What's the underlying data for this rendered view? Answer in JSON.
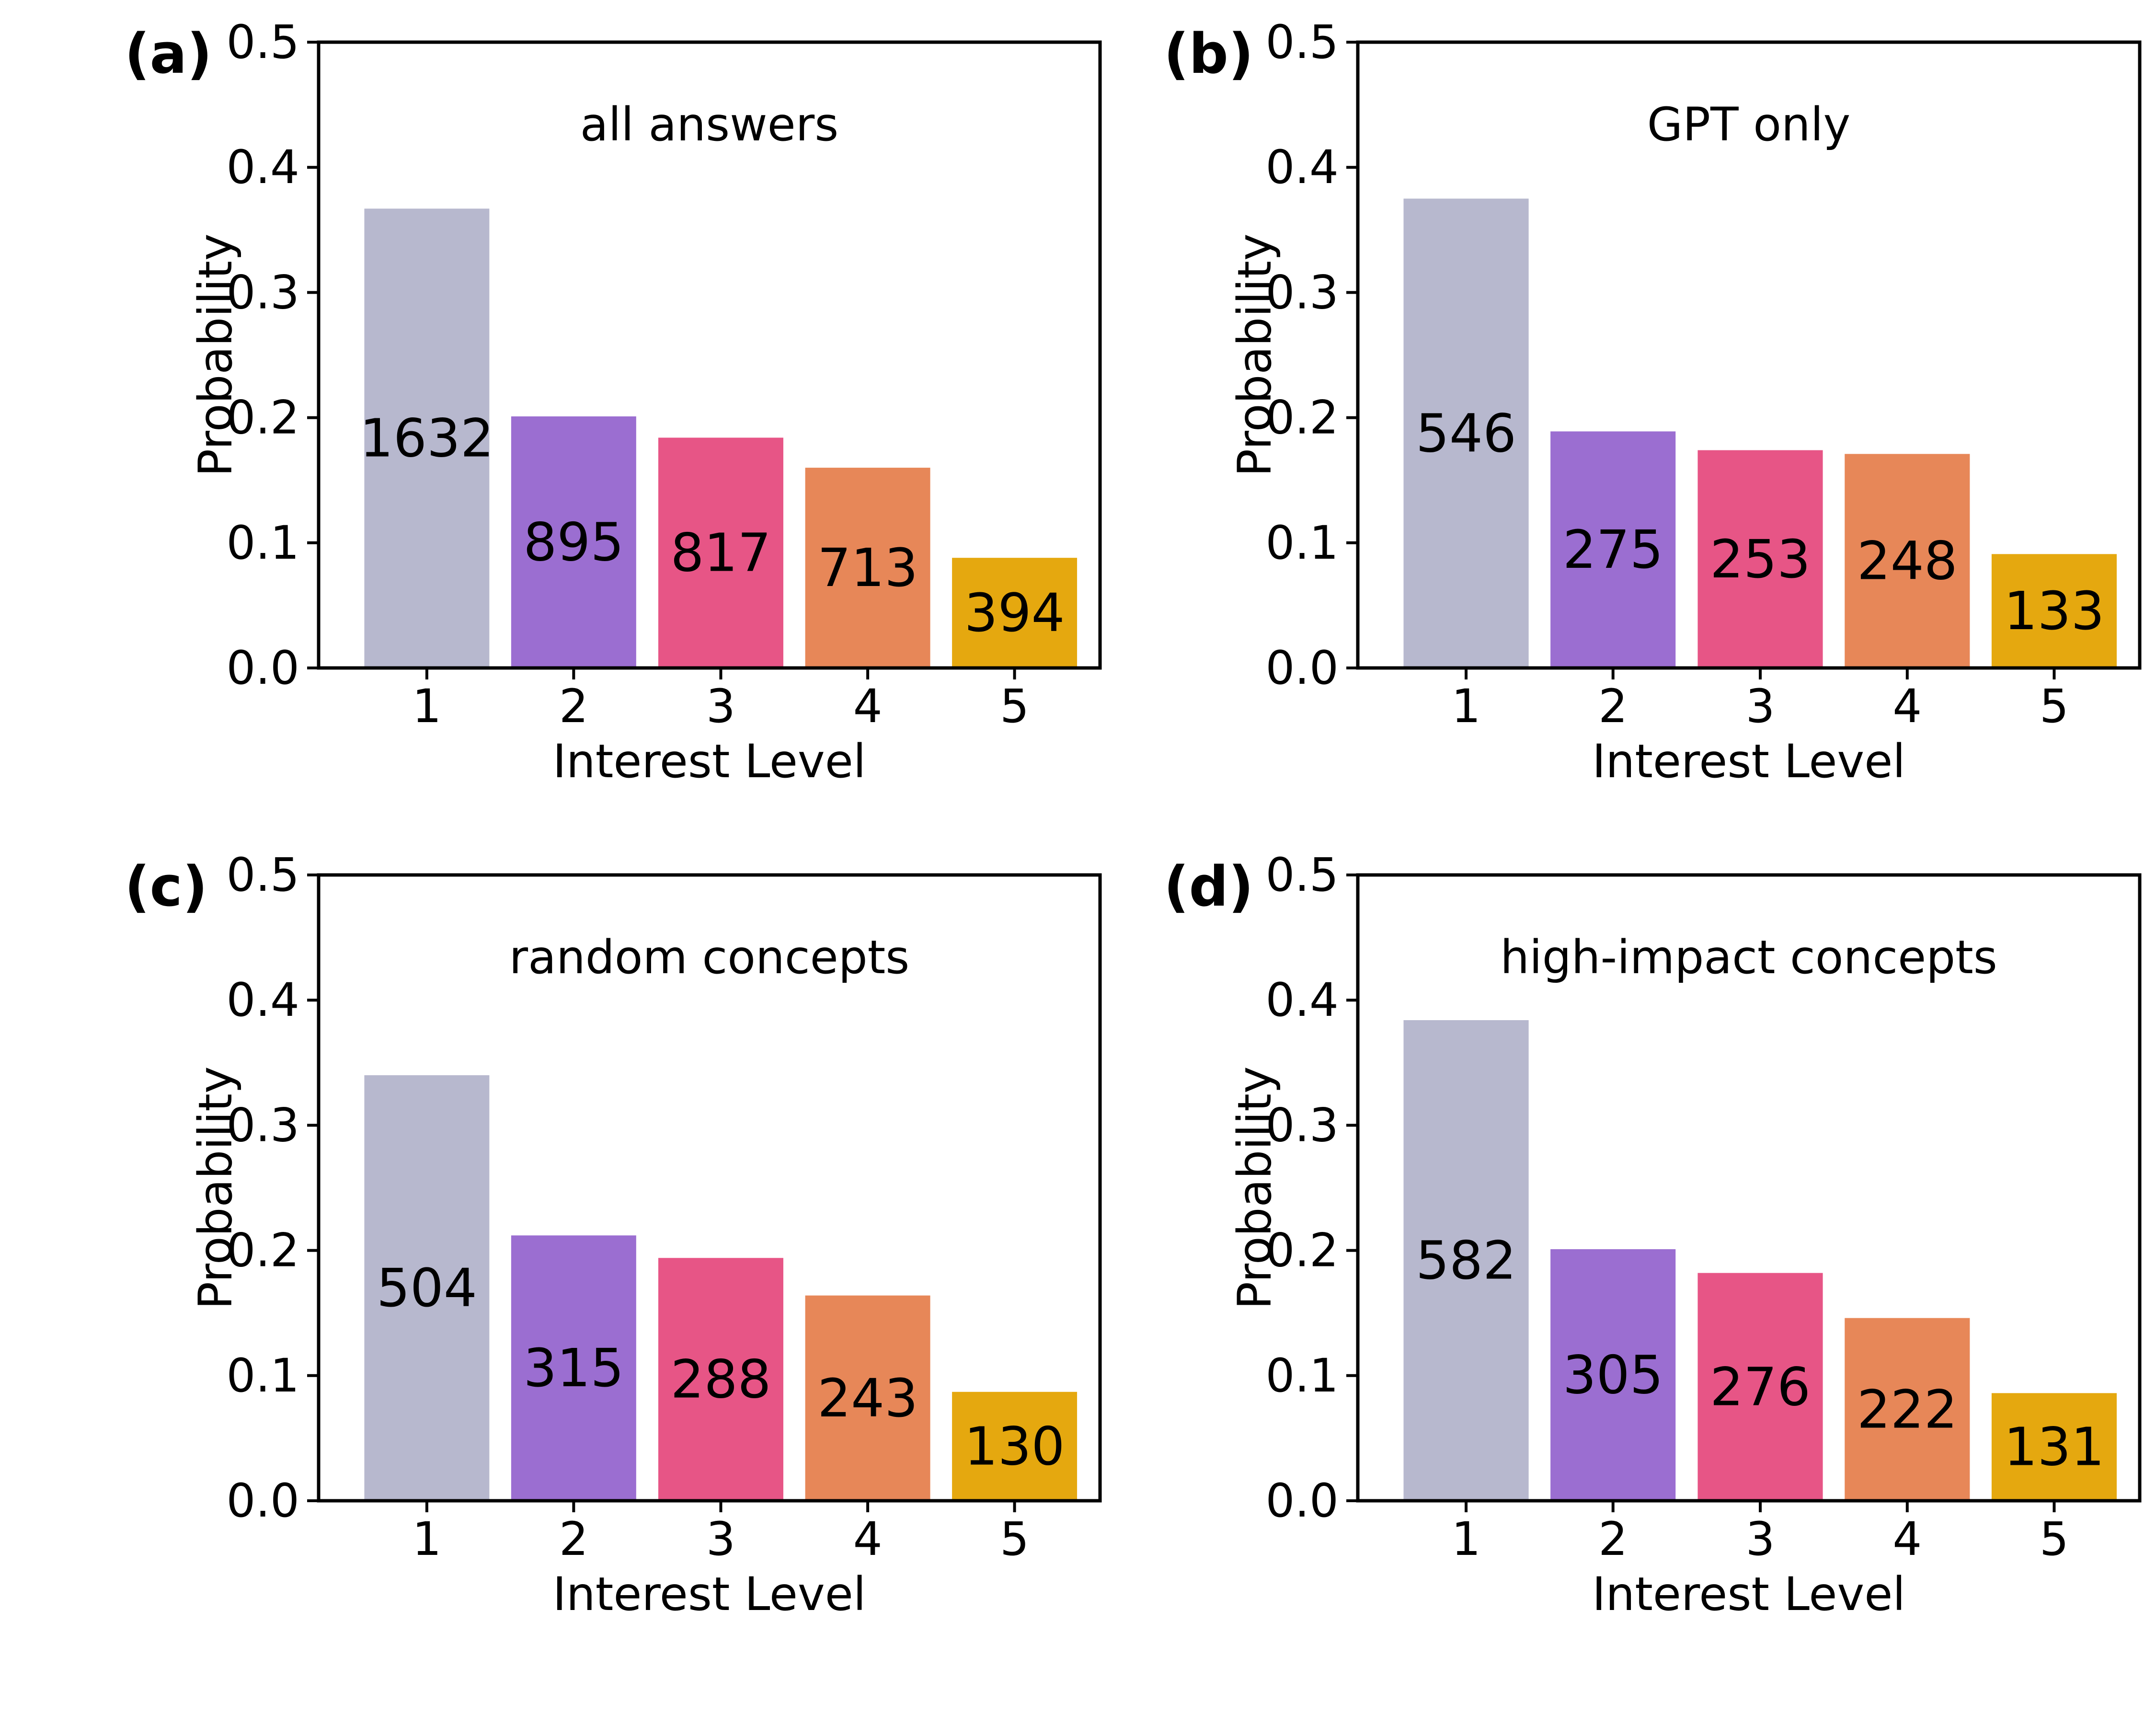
{
  "chart_data": [
    {
      "type": "bar",
      "panel": "(a)",
      "title": "all answers",
      "categories": [
        "1",
        "2",
        "3",
        "4",
        "5"
      ],
      "values": [
        0.367,
        0.201,
        0.184,
        0.16,
        0.088
      ],
      "counts": [
        "1632",
        "895",
        "817",
        "713",
        "394"
      ],
      "xlabel": "Interest Level",
      "ylabel": "Probability",
      "ylim": [
        0,
        0.5
      ],
      "yticks": [
        "0.0",
        "0.1",
        "0.2",
        "0.3",
        "0.4",
        "0.5"
      ]
    },
    {
      "type": "bar",
      "panel": "(b)",
      "title": "GPT only",
      "categories": [
        "1",
        "2",
        "3",
        "4",
        "5"
      ],
      "values": [
        0.375,
        0.189,
        0.174,
        0.171,
        0.091
      ],
      "counts": [
        "546",
        "275",
        "253",
        "248",
        "133"
      ],
      "xlabel": "Interest Level",
      "ylabel": "Probability",
      "ylim": [
        0,
        0.5
      ],
      "yticks": [
        "0.0",
        "0.1",
        "0.2",
        "0.3",
        "0.4",
        "0.5"
      ]
    },
    {
      "type": "bar",
      "panel": "(c)",
      "title": "random concepts",
      "categories": [
        "1",
        "2",
        "3",
        "4",
        "5"
      ],
      "values": [
        0.34,
        0.212,
        0.194,
        0.164,
        0.087
      ],
      "counts": [
        "504",
        "315",
        "288",
        "243",
        "130"
      ],
      "xlabel": "Interest Level",
      "ylabel": "Probability",
      "ylim": [
        0,
        0.5
      ],
      "yticks": [
        "0.0",
        "0.1",
        "0.2",
        "0.3",
        "0.4",
        "0.5"
      ]
    },
    {
      "type": "bar",
      "panel": "(d)",
      "title": "high-impact concepts",
      "categories": [
        "1",
        "2",
        "3",
        "4",
        "5"
      ],
      "values": [
        0.384,
        0.201,
        0.182,
        0.146,
        0.086
      ],
      "counts": [
        "582",
        "305",
        "276",
        "222",
        "131"
      ],
      "xlabel": "Interest Level",
      "ylabel": "Probability",
      "ylim": [
        0,
        0.5
      ],
      "yticks": [
        "0.0",
        "0.1",
        "0.2",
        "0.3",
        "0.4",
        "0.5"
      ]
    }
  ],
  "colors": [
    "#b7b8ce",
    "#9b6ed1",
    "#e75586",
    "#e78758",
    "#e5a80f"
  ]
}
